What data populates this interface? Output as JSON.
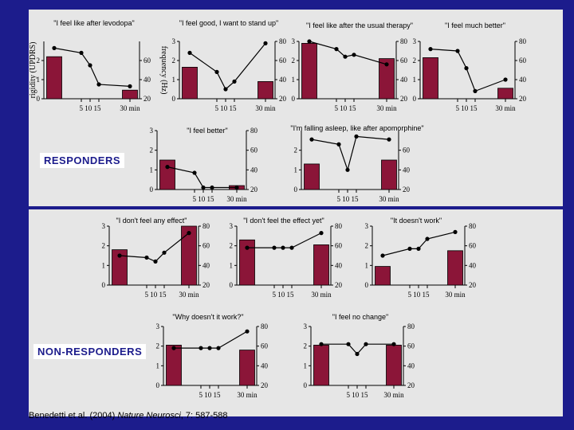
{
  "groups": {
    "responders": "RESPONDERS",
    "non_responders": "NON-RESPONDERS"
  },
  "axes": {
    "left_label": "rigidity (UPDRS)",
    "right_label": "frequency (Hz)",
    "x_unit": "min"
  },
  "citation": {
    "authors": "Benedetti et al. (2004)",
    "journal": "Nature Neurosci",
    "rest": ", 7: 587-588"
  },
  "colors": {
    "background": "#1c1c8c",
    "panel": "#e6e6e6",
    "bar": "#8b1538",
    "line": "#000000"
  },
  "chart_data": [
    {
      "id": "r1",
      "type": "bar",
      "group": "responders",
      "title": "\"I feel like after levodopa\"",
      "categories": [
        "0",
        "5",
        "10",
        "15",
        "30"
      ],
      "bars": [
        {
          "x": 0,
          "value": 2.2
        },
        {
          "x": 30,
          "value": 0.45
        }
      ],
      "line": {
        "x": [
          0,
          5,
          10,
          15,
          30
        ],
        "y": [
          73,
          68,
          55,
          35,
          33
        ]
      },
      "ylim_left": [
        0,
        3
      ],
      "ylim_right": [
        20,
        80
      ],
      "yticks_left": [
        "0",
        "1",
        "2"
      ],
      "yticks_right": [
        "20",
        "40",
        "60"
      ],
      "xticks": [
        "5",
        "10",
        "15",
        "30"
      ]
    },
    {
      "id": "r2",
      "type": "bar",
      "group": "responders",
      "title": "\"I feel good, I want to stand up\"",
      "categories": [
        "0",
        "5",
        "10",
        "15",
        "30"
      ],
      "bars": [
        {
          "x": 0,
          "value": 1.65
        },
        {
          "x": 30,
          "value": 0.9
        }
      ],
      "line": {
        "x": [
          0,
          5,
          10,
          15,
          30
        ],
        "y": [
          68,
          48,
          30,
          38,
          78
        ]
      },
      "ylim_left": [
        0,
        3
      ],
      "ylim_right": [
        20,
        80
      ],
      "yticks_left": [
        "0",
        "1",
        "2",
        "3"
      ],
      "yticks_right": [
        "20",
        "40",
        "60",
        "80"
      ],
      "xticks": [
        "5",
        "10",
        "15",
        "30"
      ]
    },
    {
      "id": "r3",
      "type": "bar",
      "group": "responders",
      "title": "\"I feel like after the usual therapy\"",
      "categories": [
        "0",
        "5",
        "10",
        "15",
        "30"
      ],
      "bars": [
        {
          "x": 0,
          "value": 2.9
        },
        {
          "x": 30,
          "value": 2.1
        }
      ],
      "line": {
        "x": [
          0,
          5,
          10,
          15,
          30
        ],
        "y": [
          80,
          72,
          64,
          66,
          56
        ]
      },
      "ylim_left": [
        0,
        3
      ],
      "ylim_right": [
        20,
        80
      ],
      "yticks_left": [
        "0",
        "1",
        "2",
        "3"
      ],
      "yticks_right": [
        "20",
        "40",
        "60",
        "80"
      ],
      "xticks": [
        "5",
        "10",
        "15",
        "30"
      ]
    },
    {
      "id": "r4",
      "type": "bar",
      "group": "responders",
      "title": "\"I feel much better\"",
      "categories": [
        "0",
        "5",
        "10",
        "15",
        "30"
      ],
      "bars": [
        {
          "x": 0,
          "value": 2.15
        },
        {
          "x": 30,
          "value": 0.55
        }
      ],
      "line": {
        "x": [
          0,
          5,
          10,
          15,
          30
        ],
        "y": [
          72,
          70,
          52,
          28,
          40
        ]
      },
      "ylim_left": [
        0,
        3
      ],
      "ylim_right": [
        20,
        80
      ],
      "yticks_left": [
        "0",
        "1",
        "2",
        "3"
      ],
      "yticks_right": [
        "20",
        "40",
        "60",
        "80"
      ],
      "xticks": [
        "5",
        "10",
        "15",
        "30"
      ]
    },
    {
      "id": "r5",
      "type": "bar",
      "group": "responders",
      "title": "\"I feel better\"",
      "categories": [
        "0",
        "5",
        "10",
        "15",
        "30"
      ],
      "bars": [
        {
          "x": 0,
          "value": 1.5
        },
        {
          "x": 30,
          "value": 0.2
        }
      ],
      "line": {
        "x": [
          0,
          5,
          10,
          15,
          30
        ],
        "y": [
          43,
          37,
          22,
          22,
          22
        ]
      },
      "ylim_left": [
        0,
        3
      ],
      "ylim_right": [
        20,
        80
      ],
      "yticks_left": [
        "0",
        "1",
        "2",
        "3"
      ],
      "yticks_right": [
        "20",
        "40",
        "60",
        "80"
      ],
      "xticks": [
        "5",
        "10",
        "15",
        "30"
      ]
    },
    {
      "id": "r6",
      "type": "bar",
      "group": "responders",
      "title": "\"I'm falling asleep, like after apomorphine\"",
      "categories": [
        "0",
        "5",
        "10",
        "15",
        "30"
      ],
      "bars": [
        {
          "x": 0,
          "value": 1.3
        },
        {
          "x": 30,
          "value": 1.5
        }
      ],
      "line": {
        "x": [
          0,
          5,
          10,
          15,
          30
        ],
        "y": [
          71,
          66,
          40,
          74,
          71
        ]
      },
      "ylim_left": [
        0,
        3
      ],
      "ylim_right": [
        20,
        80
      ],
      "yticks_left": [
        "0",
        "1",
        "2"
      ],
      "yticks_right": [
        "20",
        "40",
        "60"
      ],
      "xticks": [
        "5",
        "10",
        "15",
        "30"
      ]
    },
    {
      "id": "n1",
      "type": "bar",
      "group": "non_responders",
      "title": "\"I don't feel any effect\"",
      "categories": [
        "0",
        "5",
        "10",
        "15",
        "30"
      ],
      "bars": [
        {
          "x": 0,
          "value": 1.8
        },
        {
          "x": 30,
          "value": 3.0
        }
      ],
      "line": {
        "x": [
          0,
          5,
          10,
          15,
          30
        ],
        "y": [
          50,
          48,
          44,
          53,
          73
        ]
      },
      "ylim_left": [
        0,
        3
      ],
      "ylim_right": [
        20,
        80
      ],
      "yticks_left": [
        "0",
        "1",
        "2",
        "3"
      ],
      "yticks_right": [
        "20",
        "40",
        "60",
        "80"
      ],
      "xticks": [
        "5",
        "10",
        "15",
        "30"
      ]
    },
    {
      "id": "n2",
      "type": "bar",
      "group": "non_responders",
      "title": "\"I don't feel the effect yet\"",
      "categories": [
        "0",
        "5",
        "10",
        "15",
        "30"
      ],
      "bars": [
        {
          "x": 0,
          "value": 2.3
        },
        {
          "x": 30,
          "value": 2.05
        }
      ],
      "line": {
        "x": [
          0,
          5,
          10,
          15,
          30
        ],
        "y": [
          58,
          58,
          58,
          58,
          73
        ]
      },
      "ylim_left": [
        0,
        3
      ],
      "ylim_right": [
        20,
        80
      ],
      "yticks_left": [
        "0",
        "1",
        "2",
        "3"
      ],
      "yticks_right": [
        "20",
        "40",
        "60",
        "80"
      ],
      "xticks": [
        "5",
        "10",
        "15",
        "30"
      ]
    },
    {
      "id": "n3",
      "type": "bar",
      "group": "non_responders",
      "title": "\"It doesn't work\"",
      "categories": [
        "0",
        "5",
        "10",
        "15",
        "30"
      ],
      "bars": [
        {
          "x": 0,
          "value": 0.95
        },
        {
          "x": 30,
          "value": 1.75
        }
      ],
      "line": {
        "x": [
          0,
          5,
          10,
          15,
          30
        ],
        "y": [
          50,
          57,
          57,
          67,
          74
        ]
      },
      "ylim_left": [
        0,
        3
      ],
      "ylim_right": [
        20,
        80
      ],
      "yticks_left": [
        "0",
        "1",
        "2",
        "3"
      ],
      "yticks_right": [
        "20",
        "40",
        "60",
        "80"
      ],
      "xticks": [
        "5",
        "10",
        "15",
        "30"
      ]
    },
    {
      "id": "n4",
      "type": "bar",
      "group": "non_responders",
      "title": "\"Why doesn't it work?\"",
      "categories": [
        "0",
        "5",
        "10",
        "15",
        "30"
      ],
      "bars": [
        {
          "x": 0,
          "value": 2.05
        },
        {
          "x": 30,
          "value": 1.8
        }
      ],
      "line": {
        "x": [
          0,
          5,
          10,
          15,
          30
        ],
        "y": [
          58,
          58,
          58,
          58,
          75
        ]
      },
      "ylim_left": [
        0,
        3
      ],
      "ylim_right": [
        20,
        80
      ],
      "yticks_left": [
        "0",
        "1",
        "2",
        "3"
      ],
      "yticks_right": [
        "20",
        "40",
        "60",
        "80"
      ],
      "xticks": [
        "5",
        "10",
        "15",
        "30"
      ]
    },
    {
      "id": "n5",
      "type": "bar",
      "group": "non_responders",
      "title": "\"I feel no change\"",
      "categories": [
        "0",
        "5",
        "10",
        "15",
        "30"
      ],
      "bars": [
        {
          "x": 0,
          "value": 2.05
        },
        {
          "x": 30,
          "value": 2.05
        }
      ],
      "line": {
        "x": [
          0,
          5,
          10,
          15,
          30
        ],
        "y": [
          62,
          62,
          52,
          62,
          62
        ]
      },
      "ylim_left": [
        0,
        3
      ],
      "ylim_right": [
        20,
        80
      ],
      "yticks_left": [
        "0",
        "1",
        "2",
        "3"
      ],
      "yticks_right": [
        "20",
        "40",
        "60",
        "80"
      ],
      "xticks": [
        "5",
        "10",
        "15",
        "30"
      ]
    }
  ]
}
